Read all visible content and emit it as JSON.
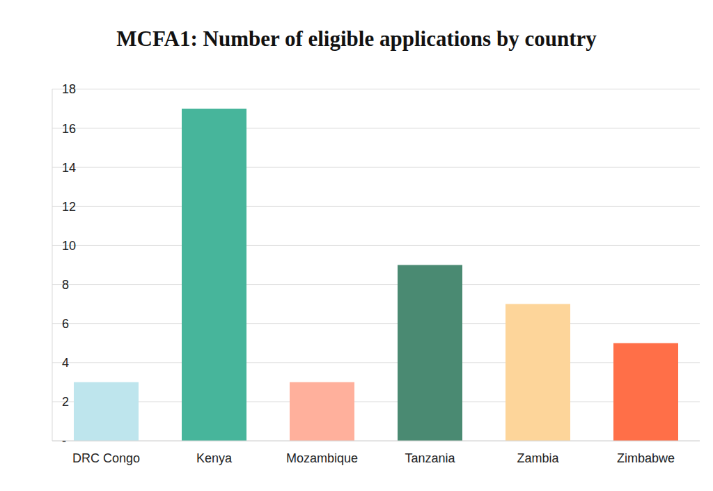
{
  "chart_data": {
    "type": "bar",
    "title": "MCFA1: Number of eligible applications by country",
    "categories": [
      "DRC Congo",
      "Kenya",
      "Mozambique",
      "Tanzania",
      "Zambia",
      "Zimbabwe"
    ],
    "values": [
      3,
      17,
      3,
      9,
      7,
      5
    ],
    "colors": [
      "#bee5ed",
      "#47b59b",
      "#ffb09c",
      "#4a8a72",
      "#fdd59a",
      "#ff6f48"
    ],
    "ylim": [
      0,
      18
    ],
    "yticks": [
      {
        "value": 0,
        "label": "-"
      },
      2,
      4,
      6,
      8,
      10,
      12,
      14,
      16,
      18
    ],
    "grid": true
  }
}
